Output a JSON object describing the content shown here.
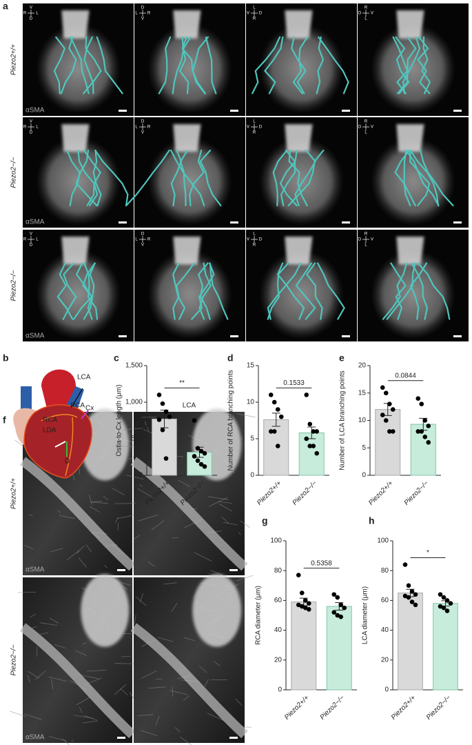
{
  "panel_letters": [
    "a",
    "b",
    "c",
    "d",
    "e",
    "f",
    "g",
    "h"
  ],
  "panel_a": {
    "row_labels": [
      "Piezo2+/+",
      "Piezo2−/−",
      "Piezo2−/−"
    ],
    "stain": "αSMA",
    "orientation": [
      [
        "V",
        "R",
        "L",
        "D"
      ],
      [
        "D",
        "L",
        "R",
        "V"
      ],
      [
        "L",
        "V",
        "D",
        "R"
      ],
      [
        "R",
        "D",
        "V",
        "L"
      ]
    ]
  },
  "panel_b": {
    "labels": [
      "LCA",
      "Cx",
      "RCA",
      "LDA",
      "D"
    ]
  },
  "panel_f": {
    "column_labels": [
      "RCA",
      "LCA"
    ],
    "row_labels": [
      "Piezo2+/+",
      "Piezo2−/−"
    ],
    "stain": "αSMA"
  },
  "chart_data": [
    {
      "type": "bar",
      "y_label": "Ostia-to-Cx length (μm)",
      "categories": [
        "Piezo2+/+",
        "Piezo2−/−"
      ],
      "values": [
        770,
        315
      ],
      "errors": [
        120,
        70
      ],
      "points": [
        [
          1100,
          980,
          870,
          800,
          760,
          620,
          230
        ],
        [
          750,
          370,
          330,
          300,
          260,
          200,
          150,
          120
        ]
      ],
      "colors": [
        "#d9d9d9",
        "#c7ecdc"
      ],
      "ylim": [
        0,
        1500
      ],
      "yticks": [
        0,
        500,
        {
          "value": 1000,
          "label": "1,000"
        },
        {
          "value": 1500,
          "label": "1,500"
        }
      ],
      "annotation": "**"
    },
    {
      "type": "bar",
      "y_label": "Number of RCA branching points",
      "categories": [
        "Piezo2+/+",
        "Piezo2−/−"
      ],
      "values": [
        7.6,
        5.8
      ],
      "errors": [
        0.9,
        0.8
      ],
      "points": [
        [
          11,
          10,
          9,
          8,
          6,
          6,
          4
        ],
        [
          11,
          7,
          6,
          6,
          5,
          4,
          4,
          3
        ]
      ],
      "colors": [
        "#d9d9d9",
        "#c7ecdc"
      ],
      "ylim": [
        0,
        15
      ],
      "yticks": [
        0,
        5,
        10,
        15
      ],
      "annotation": "0.1533"
    },
    {
      "type": "bar",
      "y_label": "Number of LCA branching points",
      "categories": [
        "Piezo2+/+",
        "Piezo2−/−"
      ],
      "values": [
        12,
        9.3
      ],
      "errors": [
        1.1,
        1.1
      ],
      "points": [
        [
          16,
          15,
          13,
          12,
          11,
          10,
          8,
          8
        ],
        [
          14,
          13,
          10,
          9,
          8,
          8,
          7,
          6
        ]
      ],
      "colors": [
        "#d9d9d9",
        "#c7ecdc"
      ],
      "ylim": [
        0,
        20
      ],
      "yticks": [
        0,
        5,
        10,
        15,
        20
      ],
      "annotation": "0.0844"
    },
    {
      "type": "bar",
      "y_label": "RCA diameter (μm)",
      "categories": [
        "Piezo2+/+",
        "Piezo2−/−"
      ],
      "values": [
        59,
        56
      ],
      "errors": [
        2.5,
        2.5
      ],
      "points": [
        [
          77,
          65,
          60,
          58,
          57,
          56,
          55,
          54
        ],
        [
          64,
          62,
          57,
          55,
          52,
          50,
          49
        ]
      ],
      "colors": [
        "#d9d9d9",
        "#c7ecdc"
      ],
      "ylim": [
        0,
        100
      ],
      "yticks": [
        0,
        20,
        40,
        60,
        80,
        100
      ],
      "annotation": "0.5358"
    },
    {
      "type": "bar",
      "y_label": "LCA diameter (μm)",
      "categories": [
        "Piezo2+/+",
        "Piezo2−/−"
      ],
      "values": [
        65,
        58
      ],
      "errors": [
        2.5,
        1.8
      ],
      "points": [
        [
          84,
          70,
          66,
          64,
          63,
          62,
          59,
          57
        ],
        [
          64,
          62,
          60,
          58,
          56,
          55,
          53
        ]
      ],
      "colors": [
        "#d9d9d9",
        "#c7ecdc"
      ],
      "ylim": [
        0,
        100
      ],
      "yticks": [
        0,
        20,
        40,
        60,
        80,
        100
      ],
      "annotation": "*"
    }
  ]
}
